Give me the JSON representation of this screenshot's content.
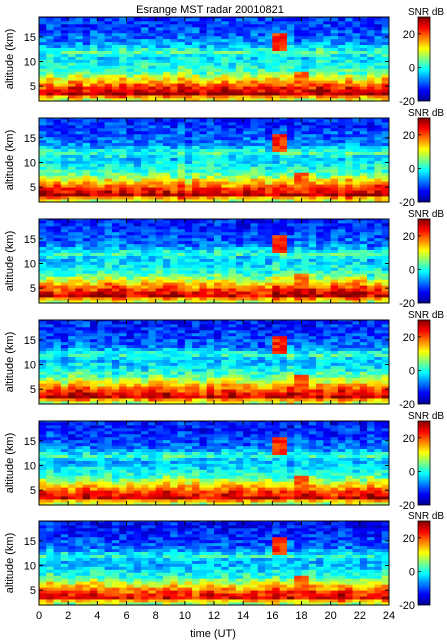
{
  "chart_data": {
    "type": "heatmap",
    "title": "Esrange MST radar 20010821",
    "xlabel": "time (UT)",
    "ylabel": "altitude (km)",
    "xlim": [
      0,
      24
    ],
    "ylim": [
      2,
      19
    ],
    "x_ticks": [
      0,
      2,
      4,
      6,
      8,
      10,
      12,
      14,
      16,
      18,
      20,
      22,
      24
    ],
    "y_ticks": [
      5,
      10,
      15
    ],
    "colorbar": {
      "label": "SNR dB",
      "range": [
        -20,
        30
      ],
      "ticks": [
        -20,
        0,
        20
      ],
      "colormap": [
        "#00008f",
        "#0000ff",
        "#0080ff",
        "#00ffff",
        "#80ff80",
        "#ffff00",
        "#ff8000",
        "#ff0000",
        "#800000"
      ]
    },
    "panels_count": 6,
    "time_step_hours": 0.5,
    "altitude_step_km": 0.6,
    "typical_snr_profile_db": [
      {
        "altitude_km": 2.5,
        "snr_db": 10
      },
      {
        "altitude_km": 3.5,
        "snr_db": 28
      },
      {
        "altitude_km": 4.5,
        "snr_db": 24
      },
      {
        "altitude_km": 5.5,
        "snr_db": 18
      },
      {
        "altitude_km": 6.5,
        "snr_db": 12
      },
      {
        "altitude_km": 7.5,
        "snr_db": 5
      },
      {
        "altitude_km": 9,
        "snr_db": 0
      },
      {
        "altitude_km": 11,
        "snr_db": -3
      },
      {
        "altitude_km": 12,
        "snr_db": 3
      },
      {
        "altitude_km": 13.5,
        "snr_db": -6
      },
      {
        "altitude_km": 15.5,
        "snr_db": -9
      },
      {
        "altitude_km": 17.5,
        "snr_db": -11
      }
    ],
    "features": [
      {
        "time_ut": 16.5,
        "altitude_km": [
          12,
          16
        ],
        "snr_db": 25
      },
      {
        "time_ut": 18,
        "altitude_km": [
          4,
          8
        ],
        "snr_db": 22
      }
    ]
  }
}
